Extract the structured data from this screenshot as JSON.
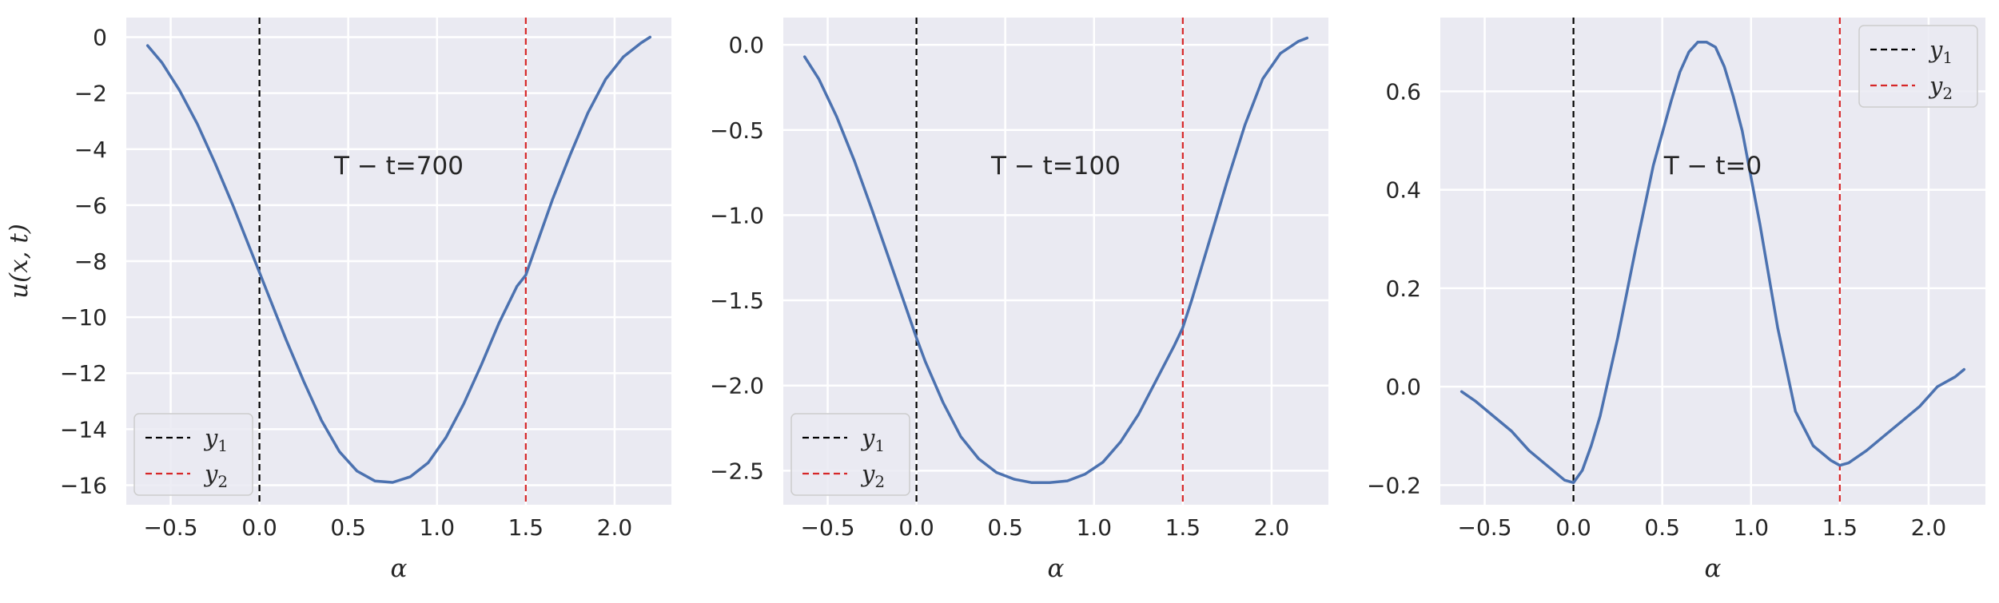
{
  "chart_data": [
    {
      "type": "line",
      "xlabel": "α",
      "ylabel": "u(x, t)",
      "annotation": "T − t=700",
      "xlim": [
        -0.75,
        2.32
      ],
      "ylim": [
        -16.7,
        0.7
      ],
      "xticks": [
        -0.5,
        0.0,
        0.5,
        1.0,
        1.5,
        2.0
      ],
      "xtick_labels": [
        "−0.5",
        "0.0",
        "0.5",
        "1.0",
        "1.5",
        "2.0"
      ],
      "yticks": [
        0,
        -2,
        -4,
        -6,
        -8,
        -10,
        -12,
        -14,
        -16
      ],
      "ytick_labels": [
        "0",
        "−2",
        "−4",
        "−6",
        "−8",
        "−10",
        "−12",
        "−14",
        "−16"
      ],
      "grid": true,
      "legend_position": "lower-left",
      "vlines": [
        {
          "x": 0.0,
          "label": "y1",
          "color": "#000000"
        },
        {
          "x": 1.5,
          "label": "y2",
          "color": "#d62728"
        }
      ],
      "series": [
        {
          "color": "#4c72b0",
          "x": [
            -0.63,
            -0.55,
            -0.45,
            -0.35,
            -0.25,
            -0.15,
            -0.05,
            0.0,
            0.05,
            0.15,
            0.25,
            0.35,
            0.45,
            0.55,
            0.65,
            0.75,
            0.85,
            0.95,
            1.05,
            1.15,
            1.25,
            1.35,
            1.45,
            1.5,
            1.55,
            1.65,
            1.75,
            1.85,
            1.95,
            2.05,
            2.15,
            2.2
          ],
          "y": [
            -0.3,
            -0.9,
            -1.9,
            -3.1,
            -4.5,
            -6.0,
            -7.6,
            -8.4,
            -9.2,
            -10.8,
            -12.3,
            -13.7,
            -14.8,
            -15.5,
            -15.85,
            -15.9,
            -15.7,
            -15.2,
            -14.3,
            -13.1,
            -11.7,
            -10.2,
            -8.9,
            -8.5,
            -7.6,
            -5.8,
            -4.2,
            -2.7,
            -1.5,
            -0.7,
            -0.2,
            0.0
          ]
        }
      ]
    },
    {
      "type": "line",
      "xlabel": "α",
      "ylabel": "",
      "annotation": "T − t=100",
      "xlim": [
        -0.75,
        2.32
      ],
      "ylim": [
        -2.7,
        0.16
      ],
      "xticks": [
        -0.5,
        0.0,
        0.5,
        1.0,
        1.5,
        2.0
      ],
      "xtick_labels": [
        "−0.5",
        "0.0",
        "0.5",
        "1.0",
        "1.5",
        "2.0"
      ],
      "yticks": [
        0.0,
        -0.5,
        -1.0,
        -1.5,
        -2.0,
        -2.5
      ],
      "ytick_labels": [
        "0.0",
        "−0.5",
        "−1.0",
        "−1.5",
        "−2.0",
        "−2.5"
      ],
      "grid": true,
      "legend_position": "lower-left",
      "vlines": [
        {
          "x": 0.0,
          "label": "y1",
          "color": "#000000"
        },
        {
          "x": 1.5,
          "label": "y2",
          "color": "#d62728"
        }
      ],
      "series": [
        {
          "color": "#4c72b0",
          "x": [
            -0.63,
            -0.55,
            -0.45,
            -0.35,
            -0.25,
            -0.15,
            -0.05,
            0.0,
            0.05,
            0.15,
            0.25,
            0.35,
            0.45,
            0.55,
            0.65,
            0.75,
            0.85,
            0.95,
            1.05,
            1.15,
            1.25,
            1.35,
            1.45,
            1.5,
            1.55,
            1.65,
            1.75,
            1.85,
            1.95,
            2.05,
            2.15,
            2.2
          ],
          "y": [
            -0.07,
            -0.2,
            -0.42,
            -0.68,
            -0.97,
            -1.27,
            -1.57,
            -1.72,
            -1.86,
            -2.1,
            -2.3,
            -2.43,
            -2.51,
            -2.55,
            -2.57,
            -2.57,
            -2.56,
            -2.52,
            -2.45,
            -2.33,
            -2.17,
            -1.97,
            -1.77,
            -1.66,
            -1.5,
            -1.15,
            -0.8,
            -0.47,
            -0.2,
            -0.05,
            0.02,
            0.04
          ]
        }
      ]
    },
    {
      "type": "line",
      "xlabel": "α",
      "ylabel": "",
      "annotation": "T − t=0",
      "xlim": [
        -0.75,
        2.32
      ],
      "ylim": [
        -0.24,
        0.75
      ],
      "xticks": [
        -0.5,
        0.0,
        0.5,
        1.0,
        1.5,
        2.0
      ],
      "xtick_labels": [
        "−0.5",
        "0.0",
        "0.5",
        "1.0",
        "1.5",
        "2.0"
      ],
      "yticks": [
        0.6,
        0.4,
        0.2,
        0.0,
        -0.2
      ],
      "ytick_labels": [
        "0.6",
        "0.4",
        "0.2",
        "0.0",
        "−0.2"
      ],
      "grid": true,
      "legend_position": "upper-right",
      "vlines": [
        {
          "x": 0.0,
          "label": "y1",
          "color": "#000000"
        },
        {
          "x": 1.5,
          "label": "y2",
          "color": "#d62728"
        }
      ],
      "series": [
        {
          "color": "#4c72b0",
          "x": [
            -0.63,
            -0.55,
            -0.45,
            -0.35,
            -0.25,
            -0.15,
            -0.05,
            0.0,
            0.05,
            0.1,
            0.15,
            0.25,
            0.35,
            0.45,
            0.55,
            0.6,
            0.65,
            0.7,
            0.75,
            0.8,
            0.85,
            0.9,
            0.95,
            1.05,
            1.15,
            1.25,
            1.35,
            1.45,
            1.5,
            1.55,
            1.65,
            1.75,
            1.85,
            1.95,
            2.05,
            2.15,
            2.2
          ],
          "y": [
            -0.01,
            -0.03,
            -0.06,
            -0.09,
            -0.13,
            -0.16,
            -0.19,
            -0.195,
            -0.17,
            -0.12,
            -0.06,
            0.1,
            0.28,
            0.45,
            0.58,
            0.64,
            0.68,
            0.7,
            0.7,
            0.69,
            0.65,
            0.59,
            0.52,
            0.33,
            0.12,
            -0.05,
            -0.12,
            -0.15,
            -0.16,
            -0.155,
            -0.13,
            -0.1,
            -0.07,
            -0.04,
            0.0,
            0.02,
            0.035
          ]
        }
      ]
    }
  ]
}
